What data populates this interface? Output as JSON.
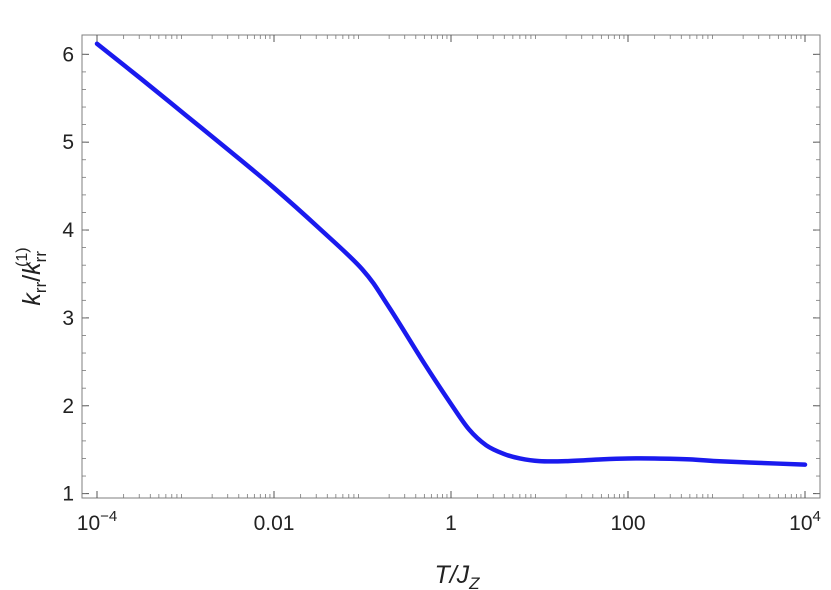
{
  "chart_data": {
    "type": "line",
    "x_scale": "log",
    "xlim": [
      0.0001,
      10000
    ],
    "ylim": [
      0.95,
      6.22
    ],
    "xlabel": "T/J",
    "xlabel_sub": "Z",
    "ylabel": "k",
    "ylabel_sub": "rr",
    "ylabel_denom": "k",
    "ylabel_denom_sub": "rr",
    "ylabel_denom_sup": "(1)",
    "x_ticks": [
      {
        "value": 0.0001,
        "label": "10",
        "sup": "−4"
      },
      {
        "value": 0.01,
        "label": "0.01",
        "sup": ""
      },
      {
        "value": 1,
        "label": "1",
        "sup": ""
      },
      {
        "value": 100,
        "label": "100",
        "sup": ""
      },
      {
        "value": 10000,
        "label": "10",
        "sup": "4"
      }
    ],
    "y_ticks": [
      {
        "value": 1,
        "label": "1"
      },
      {
        "value": 2,
        "label": "2"
      },
      {
        "value": 3,
        "label": "3"
      },
      {
        "value": 4,
        "label": "4"
      },
      {
        "value": 5,
        "label": "5"
      },
      {
        "value": 6,
        "label": "6"
      }
    ],
    "grid": false,
    "series": [
      {
        "color": "#1a1aee",
        "points": [
          {
            "x": 0.0001,
            "y": 6.12
          },
          {
            "x": 0.000316,
            "y": 5.72
          },
          {
            "x": 0.001,
            "y": 5.31
          },
          {
            "x": 0.00316,
            "y": 4.9
          },
          {
            "x": 0.01,
            "y": 4.48
          },
          {
            "x": 0.0316,
            "y": 4.03
          },
          {
            "x": 0.1,
            "y": 3.55
          },
          {
            "x": 0.2,
            "y": 3.12
          },
          {
            "x": 0.5,
            "y": 2.48
          },
          {
            "x": 1,
            "y": 2.02
          },
          {
            "x": 1.6,
            "y": 1.73
          },
          {
            "x": 2.5,
            "y": 1.55
          },
          {
            "x": 4,
            "y": 1.45
          },
          {
            "x": 6,
            "y": 1.4
          },
          {
            "x": 10,
            "y": 1.37
          },
          {
            "x": 20,
            "y": 1.37
          },
          {
            "x": 50,
            "y": 1.39
          },
          {
            "x": 100,
            "y": 1.4
          },
          {
            "x": 200,
            "y": 1.4
          },
          {
            "x": 500,
            "y": 1.39
          },
          {
            "x": 1000,
            "y": 1.37
          },
          {
            "x": 3000,
            "y": 1.35
          },
          {
            "x": 10000,
            "y": 1.33
          }
        ]
      }
    ]
  }
}
